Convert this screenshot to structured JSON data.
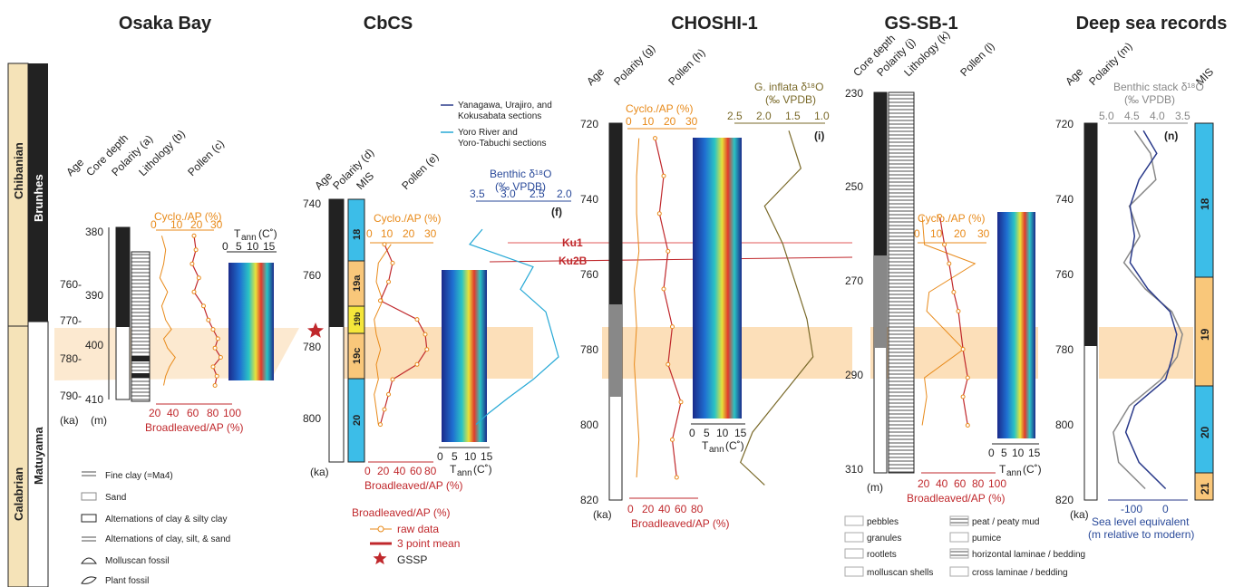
{
  "panels": {
    "osaka": {
      "title": "Osaka Bay",
      "headers": [
        "Age",
        "Core depth",
        "Polarity (a)",
        "Lithology (b)",
        "Pollen (c)"
      ],
      "age_ticks": [
        "760-",
        "770-",
        "780-",
        "790-"
      ],
      "depth_ticks": [
        "380",
        "390",
        "400",
        "410"
      ],
      "age_unit": "(ka)",
      "depth_unit": "(m)",
      "cyclo_label": "Cyclo./AP (%)",
      "cyclo_ticks": [
        "0",
        "10",
        "20",
        "30"
      ],
      "broad_label": "Broadleaved/AP (%)",
      "broad_ticks": [
        "20",
        "40",
        "60",
        "80",
        "100"
      ],
      "tann_label": "T",
      "tann_sub": "ann",
      "tann_unit": "(C˚)",
      "tann_ticks": [
        "0",
        "5",
        "10",
        "15"
      ]
    },
    "cbcs": {
      "title": "CbCS",
      "headers": [
        "Age",
        "Polarity (d)",
        "MIS",
        "Pollen (e)"
      ],
      "age_ticks": [
        "740",
        "760",
        "780",
        "800"
      ],
      "age_unit": "(ka)",
      "mis": [
        "18",
        "19a",
        "19b",
        "19c",
        "20"
      ],
      "cyclo_label": "Cyclo./AP (%)",
      "cyclo_ticks": [
        "0",
        "10",
        "20",
        "30"
      ],
      "broad_label": "Broadleaved/AP (%)",
      "broad_ticks": [
        "0",
        "20",
        "40",
        "60",
        "80"
      ],
      "tann_ticks": [
        "0",
        "5",
        "10",
        "15"
      ],
      "benthic_label": "Benthic δ¹⁸O",
      "benthic_unit": "(‰ VPDB)",
      "benthic_ticks": [
        "3.5",
        "3.0",
        "2.5",
        "2.0"
      ],
      "benthic_tag": "(f)",
      "legend_lines": [
        "Yanagawa, Urajiro, and",
        "Kokusabata sections",
        "Yoro River and",
        "Yoro-Tabuchi sections"
      ]
    },
    "choshi": {
      "title": "CHOSHI-1",
      "headers": [
        "Age",
        "Polarity (g)",
        "Pollen (h)"
      ],
      "age_ticks": [
        "720",
        "740",
        "760",
        "780",
        "800",
        "820"
      ],
      "age_unit": "(ka)",
      "cyclo_label": "Cyclo./AP (%)",
      "cyclo_ticks": [
        "0",
        "10",
        "20",
        "30"
      ],
      "broad_label": "Broadleaved/AP (%)",
      "broad_ticks": [
        "0",
        "20",
        "40",
        "60",
        "80"
      ],
      "tann_ticks": [
        "0",
        "5",
        "10",
        "15"
      ],
      "ginf_label": "G. inflata δ¹⁸O",
      "ginf_unit": "(‰ VPDB)",
      "ginf_ticks": [
        "2.5",
        "2.0",
        "1.5",
        "1.0"
      ],
      "ginf_tag": "(i)",
      "ku1": "Ku1",
      "ku2b": "Ku2B"
    },
    "gssb": {
      "title": "GS-SB-1",
      "headers": [
        "Core depth",
        "Polarity (j)",
        "Lithology (k)",
        "Pollen (l)"
      ],
      "depth_ticks": [
        "230",
        "250",
        "270",
        "290",
        "310"
      ],
      "depth_unit": "(m)",
      "cyclo_label": "Cyclo./AP (%)",
      "cyclo_ticks": [
        "0",
        "10",
        "20",
        "30"
      ],
      "broad_label": "Broadleaved/AP (%)",
      "broad_ticks": [
        "20",
        "40",
        "60",
        "80",
        "100"
      ],
      "tann_ticks": [
        "0",
        "5",
        "10",
        "15"
      ]
    },
    "deep": {
      "title": "Deep sea records",
      "headers": [
        "Age",
        "Polarity (m)",
        "MIS"
      ],
      "age_ticks": [
        "720",
        "740",
        "760",
        "780",
        "800",
        "820"
      ],
      "age_unit": "(ka)",
      "stack_label": "Benthic stack δ¹⁸O",
      "stack_unit": "(‰ VPDB)",
      "stack_ticks": [
        "5.0",
        "4.5",
        "4.0",
        "3.5"
      ],
      "tag": "(n)",
      "sl_ticks": [
        "-100",
        "0"
      ],
      "sl_label1": "Sea level equivalent",
      "sl_label2": "(m relative to modern)",
      "mis": [
        "18",
        "19",
        "20",
        "21"
      ]
    }
  },
  "stratigraphy": {
    "stage_upper": "Chibanian",
    "stage_lower": "Calabrian",
    "chron_upper": "Brunhes",
    "chron_lower": "Matuyama"
  },
  "legend_osaka": [
    "Fine clay (=Ma4)",
    "Sand",
    "Alternations of clay & silty clay",
    "Alternations of clay, silt, & sand",
    "Molluscan fossil",
    "Plant fossil"
  ],
  "legend_pollen": {
    "title": "Broadleaved/AP (%)",
    "raw": "raw data",
    "mean": "3 point mean",
    "gssp": "GSSP"
  },
  "legend_gssb": [
    "pebbles",
    "granules",
    "rootlets",
    "molluscan shells",
    "peat / peaty mud",
    "pumice",
    "horizontal laminae / bedding",
    "cross laminae / bedding"
  ],
  "colors": {
    "cyclo": "#e88a1a",
    "broad": "#c0282c",
    "blue": "#2a3a8a",
    "cyan": "#27a9d6",
    "brown": "#7a6a2a",
    "band": "#f9d7a8",
    "mis_blue": "#3cbde8",
    "mis_orange": "#f9c77a",
    "mis_yellow": "#f5e63a",
    "stage": "#f5e3b8"
  },
  "chart_data": [
    {
      "type": "line",
      "title": "Osaka Bay",
      "ylabel": "Age (ka)",
      "ylim": [
        755,
        792
      ],
      "series": [
        {
          "name": "Cyclo./AP",
          "x": [
            3,
            5,
            4,
            2,
            6,
            3,
            5,
            8,
            4,
            6,
            10,
            7,
            5,
            4
          ],
          "y": [
            757,
            760,
            763,
            766,
            769,
            772,
            775,
            777,
            779,
            781,
            783,
            785,
            787,
            789
          ]
        },
        {
          "name": "Broadleaved/AP",
          "x": [
            60,
            62,
            58,
            65,
            60,
            70,
            75,
            80,
            85,
            82,
            88,
            80,
            84,
            82
          ],
          "y": [
            757,
            760,
            763,
            766,
            769,
            772,
            775,
            777,
            779,
            781,
            783,
            785,
            787,
            789
          ]
        }
      ]
    },
    {
      "type": "line",
      "title": "CbCS",
      "ylabel": "Age (ka)",
      "ylim": [
        740,
        810
      ],
      "series": [
        {
          "name": "Cyclo./AP",
          "x": [
            10,
            4,
            3,
            6,
            2,
            3,
            5,
            3,
            4,
            2,
            3,
            4
          ],
          "y": [
            752,
            757,
            762,
            767,
            772,
            776,
            780,
            784,
            788,
            792,
            796,
            800
          ]
        },
        {
          "name": "Broadleaved/AP",
          "x": [
            20,
            30,
            25,
            15,
            60,
            70,
            72,
            60,
            30,
            25,
            20,
            15
          ],
          "y": [
            752,
            757,
            762,
            767,
            772,
            776,
            780,
            784,
            788,
            792,
            796,
            800
          ]
        },
        {
          "name": "Benthic δ18O",
          "x": [
            3.4,
            3.6,
            2.6,
            2.8,
            2.4,
            2.3,
            2.2,
            2.6,
            3.0,
            3.3,
            3.5
          ],
          "y": [
            748,
            752,
            758,
            764,
            770,
            776,
            782,
            788,
            793,
            797,
            800
          ]
        }
      ]
    },
    {
      "type": "line",
      "title": "CHOSHI-1",
      "ylabel": "Age (ka)",
      "ylim": [
        720,
        820
      ],
      "series": [
        {
          "name": "Cyclo./AP",
          "x": [
            5,
            4,
            4,
            5,
            3,
            4,
            3,
            4,
            5,
            4
          ],
          "y": [
            724,
            734,
            744,
            754,
            764,
            774,
            784,
            794,
            804,
            814
          ]
        },
        {
          "name": "Broadleaved/AP",
          "x": [
            30,
            40,
            35,
            45,
            40,
            50,
            45,
            60,
            50,
            55
          ],
          "y": [
            724,
            734,
            744,
            754,
            764,
            774,
            784,
            794,
            804,
            814
          ]
        },
        {
          "name": "G. inflata δ18O",
          "x": [
            1.6,
            1.4,
            2.0,
            1.7,
            1.5,
            1.3,
            1.2,
            1.7,
            2.2,
            2.4,
            2.0
          ],
          "y": [
            722,
            732,
            742,
            752,
            762,
            772,
            782,
            792,
            802,
            810,
            816
          ]
        }
      ]
    },
    {
      "type": "line",
      "title": "GS-SB-1",
      "ylabel": "Core depth (m)",
      "ylim": [
        230,
        310
      ],
      "series": [
        {
          "name": "Cyclo./AP",
          "x": [
            2,
            3,
            25,
            5,
            4,
            20,
            3,
            4,
            2
          ],
          "y": [
            256,
            262,
            266,
            272,
            276,
            284,
            290,
            294,
            300
          ]
        },
        {
          "name": "Broadleaved/AP",
          "x": [
            40,
            45,
            50,
            55,
            60,
            65,
            70,
            65,
            70
          ],
          "y": [
            256,
            262,
            266,
            272,
            276,
            284,
            290,
            294,
            300
          ]
        }
      ]
    },
    {
      "type": "line",
      "title": "Deep sea records",
      "ylabel": "Age (ka)",
      "ylim": [
        720,
        820
      ],
      "series": [
        {
          "name": "Benthic stack δ18O",
          "x": [
            4.5,
            4.2,
            4.1,
            4.6,
            4.4,
            4.7,
            4.3,
            3.8,
            3.6,
            3.7,
            4.0,
            4.6,
            4.9,
            4.8,
            4.3
          ],
          "y": [
            722,
            728,
            735,
            742,
            750,
            757,
            764,
            770,
            776,
            782,
            788,
            795,
            802,
            810,
            817
          ]
        },
        {
          "name": "Sea level equivalent",
          "x": [
            -70,
            -40,
            -80,
            -100,
            -90,
            -100,
            -60,
            -10,
            5,
            -5,
            -20,
            -90,
            -110,
            -80,
            -20
          ],
          "y": [
            722,
            728,
            735,
            742,
            750,
            757,
            764,
            770,
            776,
            782,
            788,
            795,
            802,
            810,
            817
          ]
        }
      ]
    }
  ]
}
